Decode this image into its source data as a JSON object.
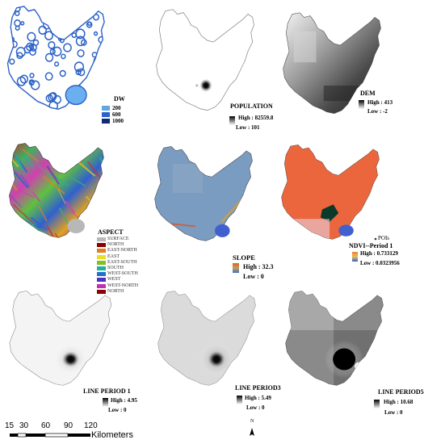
{
  "panels": {
    "dw": {
      "title": "DW",
      "classes": [
        "200",
        "600",
        "1000"
      ],
      "colors": [
        "#5fa6e6",
        "#2d63c8",
        "#0f2a7a"
      ]
    },
    "population": {
      "title": "POPULATION",
      "high": "High : 82559.8",
      "low": "Low : 101"
    },
    "dem": {
      "title": "DEM",
      "high": "High : 413",
      "low": "Low : -2"
    },
    "aspect": {
      "title": "ASPECT",
      "items": [
        {
          "label": "SURFACE",
          "color": "#b8b8b8"
        },
        {
          "label": "NORTH",
          "color": "#8b0000"
        },
        {
          "label": "EAST-NORTH",
          "color": "#e08020"
        },
        {
          "label": "EAST",
          "color": "#e8e020"
        },
        {
          "label": "EAST-SOUTH",
          "color": "#80c020"
        },
        {
          "label": "SOUTH",
          "color": "#20b0a0"
        },
        {
          "label": "WEST-SOUTH",
          "color": "#2070d0"
        },
        {
          "label": "WEST",
          "color": "#5030c0"
        },
        {
          "label": "WEST-NORTH",
          "color": "#c030b0"
        },
        {
          "label": "NORTH",
          "color": "#8b0000"
        }
      ]
    },
    "slope": {
      "title": "SLOPE",
      "high": "High : 32.3",
      "low": "Low : 0"
    },
    "ndvi": {
      "title": "NDVI--Period 1",
      "high": "High : 0.733129",
      "low": "Low : 0.0323956",
      "pois": "POIs"
    },
    "line1": {
      "title": "LINE PERIOD 1",
      "high": "High : 4.95",
      "low": "Low : 0"
    },
    "line3": {
      "title": "LINE PERIOD3",
      "high": "High : 5.49",
      "low": "Low : 0"
    },
    "line5": {
      "title": "LINE PERIOD5",
      "high": "High : 10.68",
      "low": "Low : 0"
    }
  },
  "scalebar": {
    "ticks": [
      "15",
      "30",
      "60",
      "90",
      "120"
    ],
    "unit": "Kilometers"
  },
  "north_arrow": "N"
}
